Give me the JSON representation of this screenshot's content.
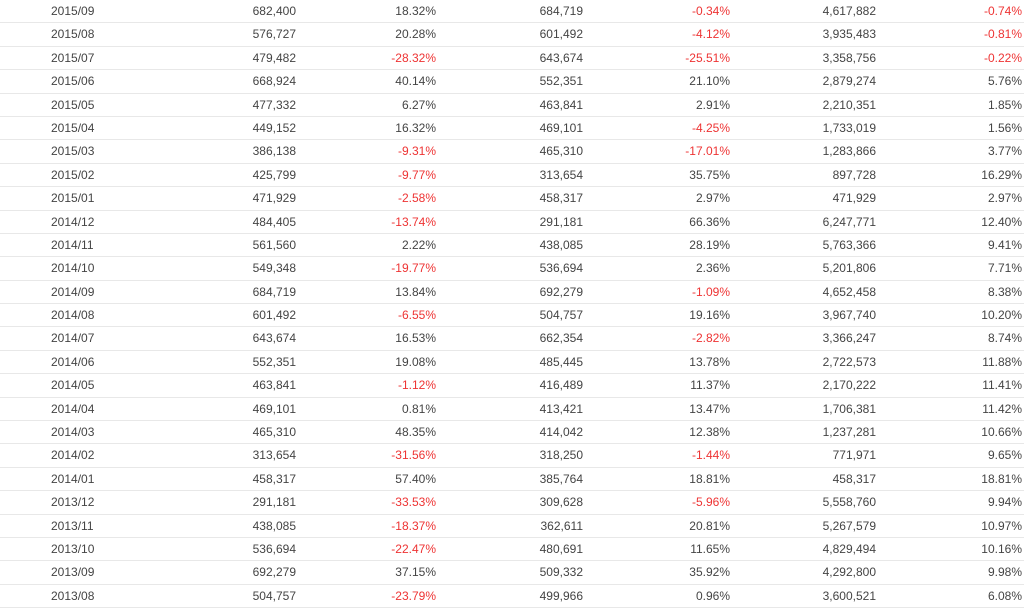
{
  "colors": {
    "text": "#444444",
    "negative": "#ee3333",
    "divider": "#e8e8e8"
  },
  "rows": [
    [
      "2015/09",
      "682,400",
      "18.32%",
      "684,719",
      "-0.34%",
      "4,617,882",
      "-0.74%"
    ],
    [
      "2015/08",
      "576,727",
      "20.28%",
      "601,492",
      "-4.12%",
      "3,935,483",
      "-0.81%"
    ],
    [
      "2015/07",
      "479,482",
      "-28.32%",
      "643,674",
      "-25.51%",
      "3,358,756",
      "-0.22%"
    ],
    [
      "2015/06",
      "668,924",
      "40.14%",
      "552,351",
      "21.10%",
      "2,879,274",
      "5.76%"
    ],
    [
      "2015/05",
      "477,332",
      "6.27%",
      "463,841",
      "2.91%",
      "2,210,351",
      "1.85%"
    ],
    [
      "2015/04",
      "449,152",
      "16.32%",
      "469,101",
      "-4.25%",
      "1,733,019",
      "1.56%"
    ],
    [
      "2015/03",
      "386,138",
      "-9.31%",
      "465,310",
      "-17.01%",
      "1,283,866",
      "3.77%"
    ],
    [
      "2015/02",
      "425,799",
      "-9.77%",
      "313,654",
      "35.75%",
      "897,728",
      "16.29%"
    ],
    [
      "2015/01",
      "471,929",
      "-2.58%",
      "458,317",
      "2.97%",
      "471,929",
      "2.97%"
    ],
    [
      "2014/12",
      "484,405",
      "-13.74%",
      "291,181",
      "66.36%",
      "6,247,771",
      "12.40%"
    ],
    [
      "2014/11",
      "561,560",
      "2.22%",
      "438,085",
      "28.19%",
      "5,763,366",
      "9.41%"
    ],
    [
      "2014/10",
      "549,348",
      "-19.77%",
      "536,694",
      "2.36%",
      "5,201,806",
      "7.71%"
    ],
    [
      "2014/09",
      "684,719",
      "13.84%",
      "692,279",
      "-1.09%",
      "4,652,458",
      "8.38%"
    ],
    [
      "2014/08",
      "601,492",
      "-6.55%",
      "504,757",
      "19.16%",
      "3,967,740",
      "10.20%"
    ],
    [
      "2014/07",
      "643,674",
      "16.53%",
      "662,354",
      "-2.82%",
      "3,366,247",
      "8.74%"
    ],
    [
      "2014/06",
      "552,351",
      "19.08%",
      "485,445",
      "13.78%",
      "2,722,573",
      "11.88%"
    ],
    [
      "2014/05",
      "463,841",
      "-1.12%",
      "416,489",
      "11.37%",
      "2,170,222",
      "11.41%"
    ],
    [
      "2014/04",
      "469,101",
      "0.81%",
      "413,421",
      "13.47%",
      "1,706,381",
      "11.42%"
    ],
    [
      "2014/03",
      "465,310",
      "48.35%",
      "414,042",
      "12.38%",
      "1,237,281",
      "10.66%"
    ],
    [
      "2014/02",
      "313,654",
      "-31.56%",
      "318,250",
      "-1.44%",
      "771,971",
      "9.65%"
    ],
    [
      "2014/01",
      "458,317",
      "57.40%",
      "385,764",
      "18.81%",
      "458,317",
      "18.81%"
    ],
    [
      "2013/12",
      "291,181",
      "-33.53%",
      "309,628",
      "-5.96%",
      "5,558,760",
      "9.94%"
    ],
    [
      "2013/11",
      "438,085",
      "-18.37%",
      "362,611",
      "20.81%",
      "5,267,579",
      "10.97%"
    ],
    [
      "2013/10",
      "536,694",
      "-22.47%",
      "480,691",
      "11.65%",
      "4,829,494",
      "10.16%"
    ],
    [
      "2013/09",
      "692,279",
      "37.15%",
      "509,332",
      "35.92%",
      "4,292,800",
      "9.98%"
    ],
    [
      "2013/08",
      "504,757",
      "-23.79%",
      "499,966",
      "0.96%",
      "3,600,521",
      "6.08%"
    ]
  ]
}
